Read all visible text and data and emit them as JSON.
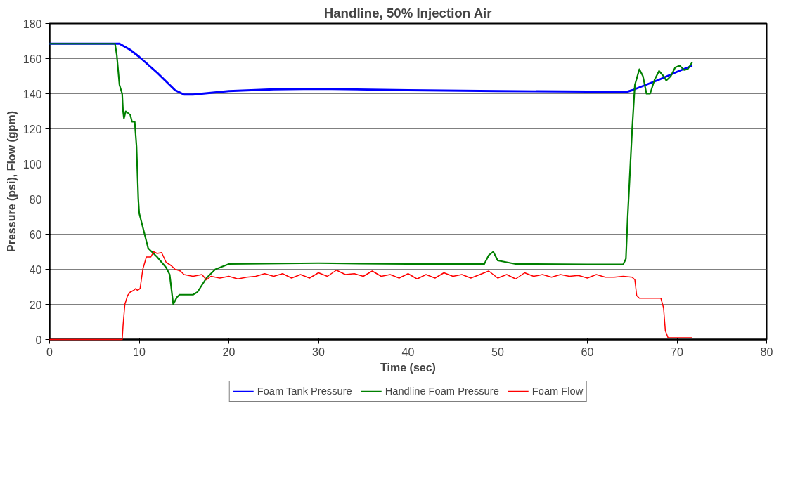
{
  "chart_data": {
    "type": "line",
    "title": "Handline, 50% Injection Air",
    "xlabel": "Time (sec)",
    "ylabel": "Pressure (psi), Flow (gpm)",
    "xlim": [
      0,
      80
    ],
    "ylim": [
      0,
      180
    ],
    "xticks": [
      0,
      10,
      20,
      30,
      40,
      50,
      60,
      70,
      80
    ],
    "yticks": [
      0,
      20,
      40,
      60,
      80,
      100,
      120,
      140,
      160,
      180
    ],
    "grid": "y",
    "legend": "bottom",
    "marker": "none",
    "line_style": "solid",
    "series": [
      {
        "name": "Foam Tank Pressure",
        "color": "#0000ff",
        "x": [
          0,
          7.8,
          9,
          10,
          12,
          14,
          15,
          16,
          18,
          20,
          25,
          30,
          40,
          50,
          60,
          64.5,
          65,
          68,
          70,
          71.7
        ],
        "values": [
          168.5,
          168.5,
          165,
          161,
          152,
          142,
          139.5,
          139.5,
          140.5,
          141.5,
          142.5,
          142.8,
          142,
          141.5,
          141.2,
          141.2,
          142,
          148,
          152.5,
          156
        ]
      },
      {
        "name": "Handline Foam Pressure",
        "color": "#008000",
        "x": [
          0,
          7.3,
          7.5,
          7.8,
          8.1,
          8.2,
          8.3,
          8.5,
          9,
          9.2,
          9.5,
          9.7,
          9.9,
          10,
          10.5,
          11,
          12,
          13,
          13.4,
          13.8,
          14.2,
          14.5,
          16,
          16.5,
          17.5,
          18.5,
          20,
          30,
          40,
          48.5,
          49,
          49.5,
          50,
          52,
          60,
          64,
          64.3,
          64.5,
          64.8,
          65,
          65.3,
          65.8,
          66.2,
          66.6,
          67,
          67.5,
          68,
          68.5,
          68.8,
          69.3,
          69.8,
          70.3,
          70.8,
          71.2,
          71.7
        ],
        "values": [
          168.5,
          168.5,
          162,
          145,
          140,
          130,
          126,
          130,
          128,
          124,
          124,
          110,
          80,
          72,
          62,
          52,
          47,
          41,
          37,
          20,
          24,
          25.5,
          25.5,
          27,
          35,
          40,
          43,
          43.5,
          43,
          43,
          48,
          50,
          45,
          43,
          42.8,
          42.8,
          46,
          70,
          100,
          120,
          145,
          154,
          150,
          140,
          140,
          148,
          153,
          150,
          147.5,
          150,
          155,
          156,
          153.5,
          154,
          158
        ]
      },
      {
        "name": "Foam Flow",
        "color": "#ff0000",
        "x": [
          0,
          8.1,
          8.2,
          8.4,
          8.7,
          9,
          9.4,
          9.6,
          9.8,
          10.1,
          10.4,
          10.8,
          11.3,
          11.6,
          12,
          12.5,
          13,
          13.6,
          14,
          14.6,
          15,
          16,
          17,
          17.5,
          18,
          19,
          20,
          21,
          22,
          23,
          24,
          25,
          26,
          27,
          28,
          29,
          30,
          31,
          32,
          33,
          34,
          35,
          36,
          37,
          38,
          39,
          40,
          41,
          42,
          43,
          44,
          45,
          46,
          47,
          48,
          49,
          50,
          51,
          52,
          53,
          54,
          55,
          56,
          57,
          58,
          59,
          60,
          61,
          62,
          63,
          64,
          65,
          65.3,
          65.5,
          65.8,
          68.2,
          68.5,
          68.7,
          69,
          71.7
        ],
        "values": [
          0,
          0,
          8,
          20,
          25,
          27,
          28,
          29,
          28,
          29,
          40,
          47,
          47,
          50,
          49,
          49.5,
          44,
          42,
          40,
          39,
          37,
          36,
          37,
          34,
          36,
          35,
          36,
          34.5,
          35.5,
          36,
          37.5,
          36,
          37.5,
          35,
          37,
          35,
          38,
          36,
          39.5,
          37,
          37.5,
          36,
          39,
          36,
          37,
          35,
          37.5,
          34.5,
          37,
          35,
          38,
          36,
          37,
          35,
          37,
          39,
          35,
          37,
          34.5,
          38,
          36,
          37,
          35.5,
          37,
          36,
          36.5,
          35,
          37,
          35.5,
          35.5,
          36,
          35.5,
          34,
          25,
          23.5,
          23.5,
          18,
          5,
          1,
          1
        ]
      }
    ]
  }
}
